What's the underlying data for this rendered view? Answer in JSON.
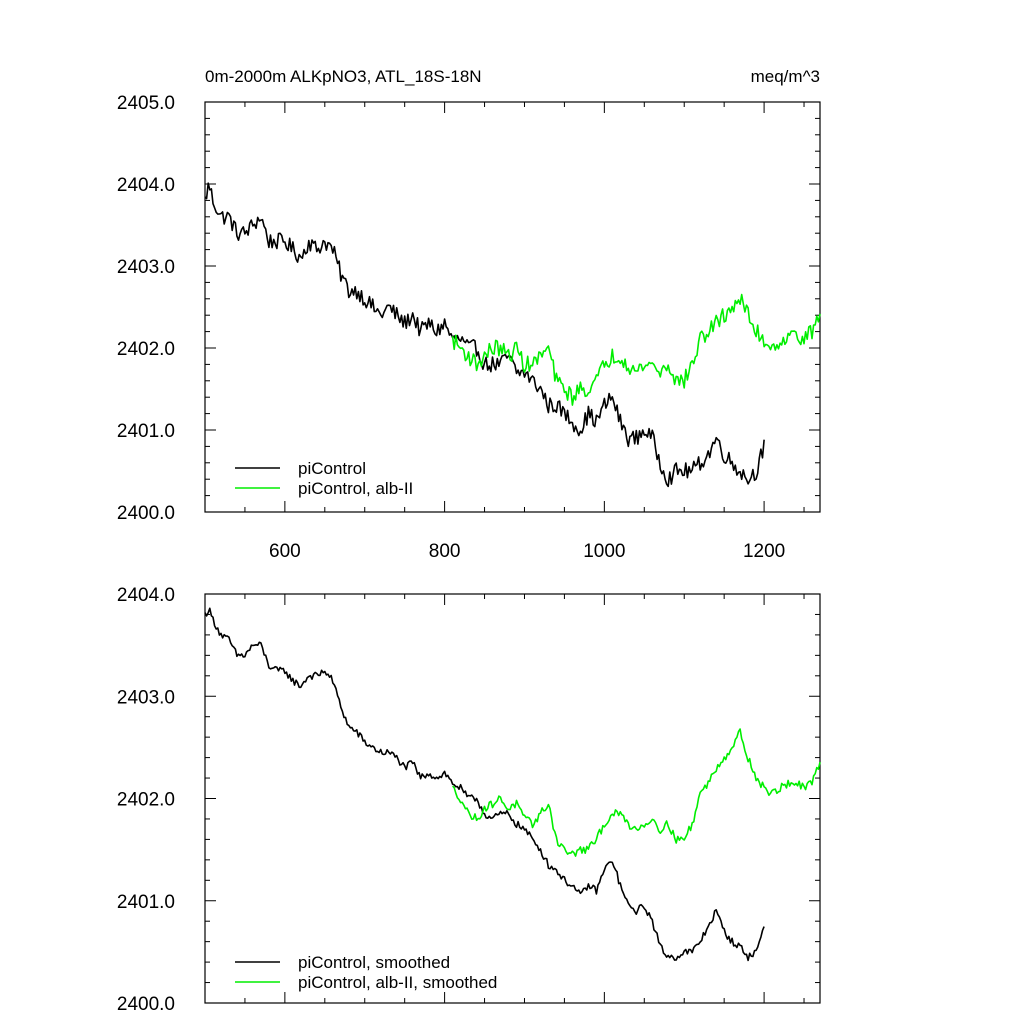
{
  "figure": {
    "title_left": "0m-2000m ALKpNO3, ATL_18S-18N",
    "title_right": "meq/m^3"
  },
  "colors": {
    "piControl": "#000000",
    "alb_II": "#00ee00",
    "background": "#ffffff",
    "axes": "#000000"
  },
  "chart_data": [
    {
      "type": "line",
      "title": "0m-2000m ALKpNO3, ATL_18S-18N",
      "units": "meq/m^3",
      "xlim": [
        500,
        1270
      ],
      "ylim": [
        2400.0,
        2405.0
      ],
      "x_ticks": [
        600,
        800,
        1000,
        1200
      ],
      "x_tick_labels": [
        "600",
        "800",
        "1000",
        "1200"
      ],
      "y_ticks": [
        2400,
        2401,
        2402,
        2403,
        2404,
        2405
      ],
      "y_tick_labels": [
        "2400.0",
        "2401.0",
        "2402.0",
        "2403.0",
        "2404.0",
        "2405.0"
      ],
      "legend": "bottom-left",
      "grid": false,
      "series": [
        {
          "name": "piControl",
          "color": "#000000",
          "anchors_x": [
            500,
            505,
            510,
            520,
            530,
            540,
            550,
            560,
            570,
            580,
            590,
            600,
            610,
            620,
            630,
            640,
            650,
            660,
            670,
            680,
            690,
            700,
            710,
            720,
            730,
            740,
            750,
            760,
            770,
            780,
            790,
            800,
            810,
            820,
            830,
            840,
            850,
            860,
            870,
            880,
            890,
            900,
            910,
            920,
            930,
            940,
            950,
            960,
            970,
            980,
            990,
            1000,
            1010,
            1020,
            1030,
            1040,
            1050,
            1060,
            1070,
            1080,
            1090,
            1100,
            1110,
            1120,
            1130,
            1140,
            1150,
            1160,
            1170,
            1180,
            1190,
            1200
          ],
          "anchors_y": [
            2403.8,
            2404.0,
            2403.8,
            2403.6,
            2403.6,
            2403.4,
            2403.4,
            2403.5,
            2403.6,
            2403.3,
            2403.3,
            2403.3,
            2403.2,
            2403.1,
            2403.3,
            2403.2,
            2403.3,
            2403.2,
            2402.9,
            2402.7,
            2402.7,
            2402.6,
            2402.5,
            2402.4,
            2402.5,
            2402.4,
            2402.3,
            2402.4,
            2402.2,
            2402.3,
            2402.2,
            2402.3,
            2402.1,
            2402.1,
            2402.0,
            2402.0,
            2401.8,
            2401.8,
            2401.8,
            2401.9,
            2401.7,
            2401.7,
            2401.6,
            2401.5,
            2401.3,
            2401.3,
            2401.2,
            2401.1,
            2401.0,
            2401.2,
            2401.1,
            2401.3,
            2401.4,
            2401.1,
            2400.9,
            2400.9,
            2401.0,
            2400.9,
            2400.6,
            2400.4,
            2400.5,
            2400.5,
            2400.5,
            2400.6,
            2400.7,
            2400.9,
            2400.7,
            2400.6,
            2400.5,
            2400.4,
            2400.5,
            2400.8
          ],
          "noise_amplitude": 0.1
        },
        {
          "name": "piControl, alb-II",
          "color": "#00ee00",
          "anchors_x": [
            810,
            820,
            830,
            840,
            850,
            860,
            870,
            880,
            890,
            900,
            910,
            920,
            930,
            940,
            950,
            960,
            970,
            980,
            990,
            1000,
            1010,
            1020,
            1030,
            1040,
            1050,
            1060,
            1070,
            1080,
            1090,
            1100,
            1110,
            1120,
            1130,
            1140,
            1150,
            1160,
            1170,
            1180,
            1190,
            1200,
            1210,
            1220,
            1230,
            1240,
            1250,
            1260,
            1270
          ],
          "anchors_y": [
            2402.1,
            2402.0,
            2401.9,
            2401.8,
            2401.9,
            2402.0,
            2402.0,
            2401.9,
            2402.0,
            2401.8,
            2401.8,
            2401.9,
            2402.0,
            2401.6,
            2401.5,
            2401.4,
            2401.5,
            2401.5,
            2401.6,
            2401.8,
            2401.9,
            2401.9,
            2401.8,
            2401.7,
            2401.8,
            2401.8,
            2401.7,
            2401.8,
            2401.6,
            2401.6,
            2401.8,
            2402.1,
            2402.2,
            2402.3,
            2402.4,
            2402.5,
            2402.6,
            2402.4,
            2402.2,
            2402.1,
            2402.0,
            2402.1,
            2402.1,
            2402.2,
            2402.1,
            2402.2,
            2402.4
          ],
          "noise_amplitude": 0.1
        }
      ]
    },
    {
      "type": "line",
      "xlim": [
        500,
        1270
      ],
      "ylim": [
        2400.0,
        2404.0
      ],
      "x_ticks": [
        600,
        800,
        1000,
        1200
      ],
      "y_ticks": [
        2400,
        2401,
        2402,
        2403,
        2404
      ],
      "y_tick_labels": [
        "2400.0",
        "2401.0",
        "2402.0",
        "2403.0",
        "2404.0"
      ],
      "legend": "bottom-left",
      "grid": false,
      "series": [
        {
          "name": "piControl, smoothed",
          "color": "#000000",
          "anchors_x": [
            500,
            505,
            510,
            520,
            530,
            540,
            550,
            560,
            570,
            580,
            590,
            600,
            610,
            620,
            630,
            640,
            650,
            660,
            670,
            680,
            690,
            700,
            710,
            720,
            730,
            740,
            750,
            760,
            770,
            780,
            790,
            800,
            810,
            820,
            830,
            840,
            850,
            860,
            870,
            880,
            890,
            900,
            910,
            920,
            930,
            940,
            950,
            960,
            970,
            980,
            990,
            1000,
            1010,
            1020,
            1030,
            1040,
            1050,
            1060,
            1070,
            1080,
            1090,
            1100,
            1110,
            1120,
            1130,
            1140,
            1150,
            1160,
            1170,
            1180,
            1190,
            1200
          ],
          "anchors_y": [
            2403.8,
            2403.85,
            2403.75,
            2403.6,
            2403.55,
            2403.4,
            2403.4,
            2403.5,
            2403.5,
            2403.3,
            2403.25,
            2403.25,
            2403.15,
            2403.1,
            2403.2,
            2403.2,
            2403.25,
            2403.15,
            2402.9,
            2402.7,
            2402.65,
            2402.55,
            2402.5,
            2402.45,
            2402.45,
            2402.4,
            2402.3,
            2402.35,
            2402.2,
            2402.25,
            2402.2,
            2402.25,
            2402.15,
            2402.1,
            2402.0,
            2402.0,
            2401.85,
            2401.8,
            2401.85,
            2401.85,
            2401.75,
            2401.7,
            2401.6,
            2401.5,
            2401.35,
            2401.3,
            2401.2,
            2401.15,
            2401.05,
            2401.15,
            2401.1,
            2401.3,
            2401.4,
            2401.15,
            2400.95,
            2400.9,
            2400.95,
            2400.8,
            2400.55,
            2400.45,
            2400.45,
            2400.5,
            2400.5,
            2400.6,
            2400.75,
            2400.9,
            2400.7,
            2400.6,
            2400.55,
            2400.45,
            2400.5,
            2400.75
          ],
          "noise_amplitude": 0.035
        },
        {
          "name": "piControl, alb-II, smoothed",
          "color": "#00ee00",
          "anchors_x": [
            810,
            820,
            830,
            840,
            850,
            860,
            870,
            880,
            890,
            900,
            910,
            920,
            930,
            940,
            950,
            960,
            970,
            980,
            990,
            1000,
            1010,
            1020,
            1030,
            1040,
            1050,
            1060,
            1070,
            1080,
            1090,
            1100,
            1110,
            1120,
            1130,
            1140,
            1150,
            1160,
            1170,
            1180,
            1190,
            1200,
            1210,
            1220,
            1230,
            1240,
            1250,
            1260,
            1270
          ],
          "anchors_y": [
            2402.1,
            2402.0,
            2401.85,
            2401.8,
            2401.9,
            2401.95,
            2402.0,
            2401.9,
            2401.95,
            2401.8,
            2401.75,
            2401.85,
            2401.95,
            2401.6,
            2401.5,
            2401.45,
            2401.5,
            2401.5,
            2401.6,
            2401.75,
            2401.85,
            2401.85,
            2401.75,
            2401.7,
            2401.75,
            2401.8,
            2401.7,
            2401.75,
            2401.6,
            2401.6,
            2401.75,
            2402.05,
            2402.15,
            2402.3,
            2402.4,
            2402.5,
            2402.65,
            2402.4,
            2402.2,
            2402.1,
            2402.05,
            2402.1,
            2402.15,
            2402.15,
            2402.1,
            2402.15,
            2402.35
          ],
          "noise_amplitude": 0.04
        }
      ]
    }
  ]
}
